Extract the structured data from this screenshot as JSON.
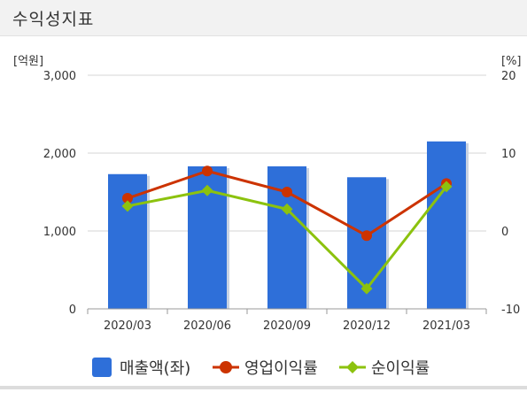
{
  "header": {
    "title": "수익성지표"
  },
  "chart_data": {
    "type": "bar+line",
    "categories": [
      "2020/03",
      "2020/06",
      "2020/09",
      "2020/12",
      "2021/03"
    ],
    "left_axis": {
      "unit_label": "[억원]",
      "ticks": [
        "3,000",
        "2,000",
        "1,000",
        "0"
      ],
      "ylim": [
        0,
        3000
      ]
    },
    "right_axis": {
      "unit_label": "[%]",
      "ticks": [
        "20",
        "10",
        "0",
        "-10"
      ],
      "ylim": [
        -10,
        20
      ]
    },
    "grid": true,
    "legend_position": "bottom",
    "series": [
      {
        "name": "매출액(좌)",
        "type": "bar",
        "axis": "left",
        "color": "#2e6fd9",
        "values": [
          1730,
          1830,
          1830,
          1690,
          2150
        ]
      },
      {
        "name": "영업이익률",
        "type": "line",
        "axis": "right",
        "color": "#cc3300",
        "marker": "circle",
        "values": [
          4.2,
          7.7,
          5.0,
          -0.6,
          6.1
        ]
      },
      {
        "name": "순이익률",
        "type": "line",
        "axis": "right",
        "color": "#8cc20e",
        "marker": "diamond",
        "values": [
          3.2,
          5.2,
          2.8,
          -7.4,
          5.7
        ]
      }
    ]
  }
}
